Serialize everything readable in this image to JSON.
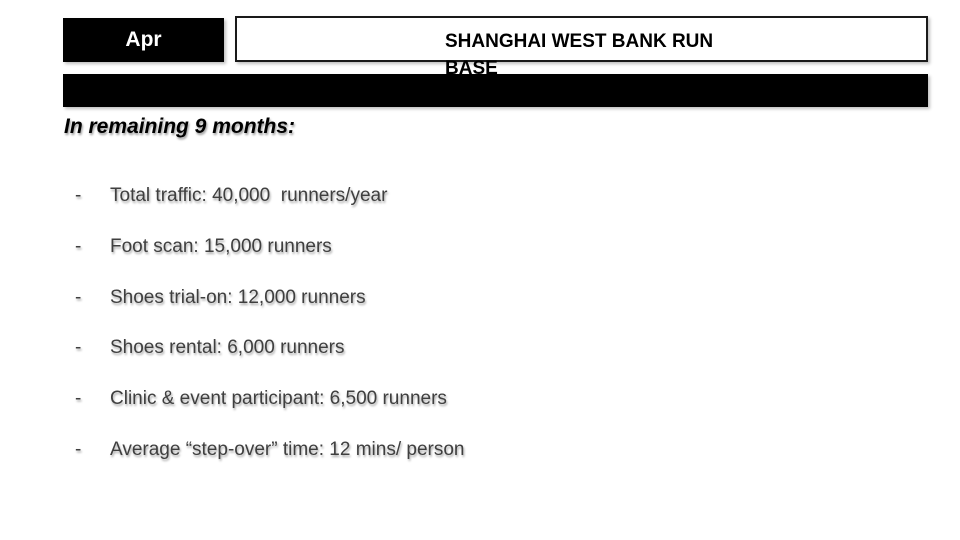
{
  "slide": {
    "month_tab": {
      "label": "Apr"
    },
    "title_box": {
      "title": "SHANGHAI WEST BANK RUN BASE"
    },
    "heading": "In remaining 9 months:",
    "bullets": [
      {
        "marker": "-",
        "text": "Total traffic: 40,000  runners/year"
      },
      {
        "marker": "-",
        "text": "Foot scan: 15,000 runners"
      },
      {
        "marker": "-",
        "text": "Shoes trial-on: 12,000 runners"
      },
      {
        "marker": "-",
        "text": "Shoes rental: 6,000 runners"
      },
      {
        "marker": "-",
        "text": "Clinic & event participant: 6,500 runners"
      },
      {
        "marker": "-",
        "text": "Average “step-over” time: 12 mins/ person"
      }
    ],
    "colors": {
      "block_black": "#000000",
      "title_text": "#000000",
      "body_text": "#3f3f3f",
      "background": "#ffffff"
    }
  }
}
